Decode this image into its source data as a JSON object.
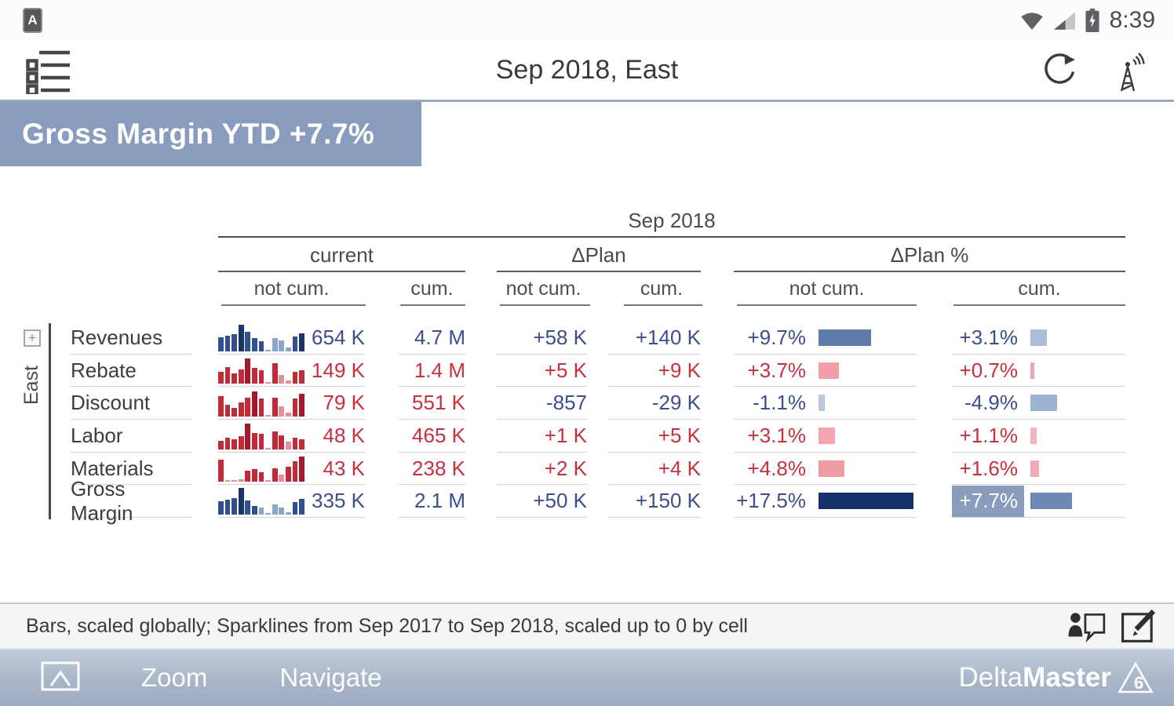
{
  "status_bar": {
    "badge": "A",
    "time": "8:39"
  },
  "header": {
    "title": "Sep 2018, East"
  },
  "banner": {
    "text": "Gross Margin YTD +7.7%",
    "bg": "#8a9cbe"
  },
  "table": {
    "period": "Sep 2018",
    "region": "East",
    "groups": [
      {
        "label": "current",
        "sub": [
          "not cum.",
          "cum."
        ]
      },
      {
        "label": "ΔPlan",
        "sub": [
          "not cum.",
          "cum."
        ]
      },
      {
        "label": "ΔPlan %",
        "sub": [
          "not cum.",
          "cum."
        ]
      }
    ],
    "palette": {
      "blue_text": "#3e4d8b",
      "red_text": "#c5313f",
      "highlight_bg": "#8a9cbe",
      "spark_blue": {
        "d": "#1b3469",
        "m": "#32508e",
        "l": "#8da5cb"
      },
      "spark_red": {
        "d": "#a3182a",
        "m": "#c02b39",
        "l": "#de929b"
      }
    },
    "rows": [
      {
        "label": "Revenues",
        "spark": {
          "color": "blue",
          "bars": [
            [
              52,
              "m"
            ],
            [
              58,
              "m"
            ],
            [
              64,
              "m"
            ],
            [
              100,
              "d"
            ],
            [
              74,
              "m"
            ],
            [
              48,
              "m"
            ],
            [
              38,
              "m"
            ],
            [
              5,
              "l"
            ],
            [
              50,
              "l"
            ],
            [
              40,
              "l"
            ],
            [
              14,
              "l"
            ],
            [
              56,
              "m"
            ],
            [
              66,
              "d"
            ]
          ]
        },
        "current_not_cum": {
          "t": "654 K",
          "c": "blue"
        },
        "current_cum": {
          "t": "4.7 M",
          "c": "blue"
        },
        "dplan_not_cum": {
          "t": "+58 K",
          "c": "blue"
        },
        "dplan_cum": {
          "t": "+140 K",
          "c": "blue"
        },
        "dpct_not_cum": {
          "t": "+9.7%",
          "c": "blue",
          "pct": 9.7,
          "bar": "#5d7cab"
        },
        "dpct_cum": {
          "t": "+3.1%",
          "c": "blue",
          "pct": 3.1,
          "bar": "#a9bedb"
        }
      },
      {
        "label": "Rebate",
        "spark": {
          "color": "red",
          "bars": [
            [
              45,
              "m"
            ],
            [
              62,
              "m"
            ],
            [
              40,
              "m"
            ],
            [
              55,
              "m"
            ],
            [
              95,
              "d"
            ],
            [
              60,
              "m"
            ],
            [
              52,
              "m"
            ],
            [
              4,
              "l"
            ],
            [
              78,
              "m"
            ],
            [
              33,
              "l"
            ],
            [
              13,
              "l"
            ],
            [
              46,
              "m"
            ],
            [
              50,
              "m"
            ]
          ]
        },
        "current_not_cum": {
          "t": "149 K",
          "c": "red"
        },
        "current_cum": {
          "t": "1.4 M",
          "c": "red"
        },
        "dplan_not_cum": {
          "t": "+5 K",
          "c": "red"
        },
        "dplan_cum": {
          "t": "+9 K",
          "c": "red"
        },
        "dpct_not_cum": {
          "t": "+3.7%",
          "c": "red",
          "pct": 3.7,
          "bar": "#f09fa9"
        },
        "dpct_cum": {
          "t": "+0.7%",
          "c": "red",
          "pct": 0.7,
          "bar": "#eca4ad"
        }
      },
      {
        "label": "Discount",
        "spark": {
          "color": "red",
          "bars": [
            [
              78,
              "m"
            ],
            [
              45,
              "m"
            ],
            [
              33,
              "m"
            ],
            [
              52,
              "m"
            ],
            [
              72,
              "m"
            ],
            [
              95,
              "d"
            ],
            [
              68,
              "m"
            ],
            [
              4,
              "l"
            ],
            [
              72,
              "m"
            ],
            [
              38,
              "l"
            ],
            [
              14,
              "l"
            ],
            [
              68,
              "m"
            ],
            [
              85,
              "d"
            ]
          ]
        },
        "current_not_cum": {
          "t": "79 K",
          "c": "red"
        },
        "current_cum": {
          "t": "551 K",
          "c": "red"
        },
        "dplan_not_cum": {
          "t": "-857",
          "c": "blue"
        },
        "dplan_cum": {
          "t": "-29 K",
          "c": "blue"
        },
        "dpct_not_cum": {
          "t": "-1.1%",
          "c": "blue",
          "pct": -1.1,
          "bar": "#b9cade"
        },
        "dpct_cum": {
          "t": "-4.9%",
          "c": "blue",
          "pct": -4.9,
          "bar": "#9cb4d3"
        }
      },
      {
        "label": "Labor",
        "spark": {
          "color": "red",
          "bars": [
            [
              32,
              "m"
            ],
            [
              44,
              "m"
            ],
            [
              38,
              "m"
            ],
            [
              50,
              "m"
            ],
            [
              95,
              "d"
            ],
            [
              62,
              "m"
            ],
            [
              58,
              "m"
            ],
            [
              4,
              "l"
            ],
            [
              68,
              "m"
            ],
            [
              52,
              "m"
            ],
            [
              28,
              "l"
            ],
            [
              44,
              "m"
            ],
            [
              38,
              "m"
            ]
          ]
        },
        "current_not_cum": {
          "t": "48 K",
          "c": "red"
        },
        "current_cum": {
          "t": "465 K",
          "c": "red"
        },
        "dplan_not_cum": {
          "t": "+1 K",
          "c": "red"
        },
        "dplan_cum": {
          "t": "+5 K",
          "c": "red"
        },
        "dpct_not_cum": {
          "t": "+3.1%",
          "c": "red",
          "pct": 3.1,
          "bar": "#f2a7b0"
        },
        "dpct_cum": {
          "t": "+1.1%",
          "c": "red",
          "pct": 1.1,
          "bar": "#f4b4bd"
        }
      },
      {
        "label": "Materials",
        "spark": {
          "color": "red",
          "bars": [
            [
              85,
              "m"
            ],
            [
              8,
              "l"
            ],
            [
              6,
              "l"
            ],
            [
              10,
              "l"
            ],
            [
              42,
              "m"
            ],
            [
              48,
              "m"
            ],
            [
              38,
              "m"
            ],
            [
              4,
              "l"
            ],
            [
              52,
              "m"
            ],
            [
              28,
              "l"
            ],
            [
              58,
              "m"
            ],
            [
              78,
              "m"
            ],
            [
              95,
              "d"
            ]
          ]
        },
        "current_not_cum": {
          "t": "43 K",
          "c": "red"
        },
        "current_cum": {
          "t": "238 K",
          "c": "red"
        },
        "dplan_not_cum": {
          "t": "+2 K",
          "c": "red"
        },
        "dplan_cum": {
          "t": "+4 K",
          "c": "red"
        },
        "dpct_not_cum": {
          "t": "+4.8%",
          "c": "red",
          "pct": 4.8,
          "bar": "#ee9ba5"
        },
        "dpct_cum": {
          "t": "+1.6%",
          "c": "red",
          "pct": 1.6,
          "bar": "#f2abb4"
        }
      },
      {
        "label": "Gross Margin",
        "spark": {
          "color": "blue",
          "bars": [
            [
              50,
              "m"
            ],
            [
              56,
              "m"
            ],
            [
              62,
              "m"
            ],
            [
              100,
              "d"
            ],
            [
              52,
              "m"
            ],
            [
              34,
              "m"
            ],
            [
              28,
              "l"
            ],
            [
              4,
              "l"
            ],
            [
              38,
              "l"
            ],
            [
              28,
              "l"
            ],
            [
              10,
              "l"
            ],
            [
              48,
              "m"
            ],
            [
              58,
              "m"
            ]
          ]
        },
        "current_not_cum": {
          "t": "335 K",
          "c": "blue"
        },
        "current_cum": {
          "t": "2.1 M",
          "c": "blue"
        },
        "dplan_not_cum": {
          "t": "+50 K",
          "c": "blue"
        },
        "dplan_cum": {
          "t": "+150 K",
          "c": "blue"
        },
        "dpct_not_cum": {
          "t": "+17.5%",
          "c": "blue",
          "pct": 17.5,
          "bar": "#16306b"
        },
        "dpct_cum": {
          "t": "+7.7%",
          "c": "hl",
          "pct": 7.7,
          "bar": "#6d88b5"
        }
      }
    ]
  },
  "footer": {
    "status": "Bars, scaled globally; Sparklines from Sep 2017 to Sep 2018, scaled up to 0 by cell"
  },
  "navbar": {
    "zoom_label": "Zoom",
    "navigate_label": "Navigate",
    "brand_light": "Delta",
    "brand_bold": "Master",
    "brand_version": "6"
  }
}
